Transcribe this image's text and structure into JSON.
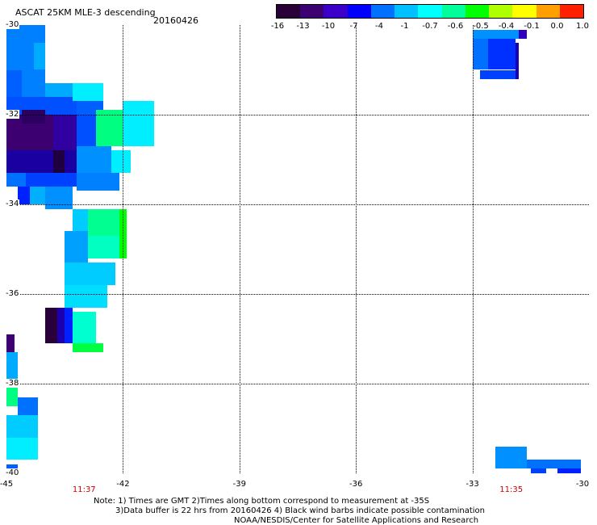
{
  "header": {
    "title": "ASCAT 25KM MLE-3 descending",
    "date": "20160426"
  },
  "colorbar": {
    "labels": [
      "-16",
      "-13",
      "-10",
      "-7",
      "-4",
      "-1",
      "-0.7",
      "-0.6",
      "-0.5",
      "-0.4",
      "-0.1",
      "0.0",
      "1.0"
    ],
    "colors": [
      "#2a0038",
      "#3c0070",
      "#3a00c8",
      "#0000ff",
      "#0070ff",
      "#00c0ff",
      "#00ffff",
      "#00ff9a",
      "#00ff00",
      "#b0ff00",
      "#ffff00",
      "#ffa000",
      "#ff2000"
    ]
  },
  "map": {
    "lat_labels": [
      "-30",
      "-32",
      "-34",
      "-36",
      "-38",
      "-40"
    ],
    "lon_labels": [
      "-45",
      "-42",
      "-39",
      "-36",
      "-33",
      "-30"
    ],
    "lon_range": [
      -45,
      -30
    ],
    "lat_range": [
      -30,
      -40
    ],
    "time_labels": [
      {
        "lon": -43,
        "text": "11:37"
      },
      {
        "lon": -32,
        "text": "11:35"
      }
    ],
    "cells": [
      {
        "lon1": -45,
        "lon2": -44,
        "lat1": -30.0,
        "lat2": -31.6,
        "v": "#0080ff"
      },
      {
        "lon1": -44.3,
        "lon2": -44,
        "lat1": -30.4,
        "lat2": -31.0,
        "v": "#00aaff"
      },
      {
        "lon1": -45,
        "lon2": -44.6,
        "lat1": -31.0,
        "lat2": -31.6,
        "v": "#0060ff"
      },
      {
        "lon1": -45,
        "lon2": -43.2,
        "lat1": -31.6,
        "lat2": -32.0,
        "v": "#0050ff"
      },
      {
        "lon1": -44.0,
        "lon2": -43.0,
        "lat1": -31.3,
        "lat2": -31.6,
        "v": "#00aaff"
      },
      {
        "lon1": -43.3,
        "lon2": -42.5,
        "lat1": -31.3,
        "lat2": -31.7,
        "v": "#00eeff"
      },
      {
        "lon1": -43.2,
        "lon2": -42.5,
        "lat1": -31.7,
        "lat2": -32.0,
        "v": "#0060ff"
      },
      {
        "lon1": -45,
        "lon2": -43.8,
        "lat1": -32.0,
        "lat2": -32.8,
        "v": "#3c0070"
      },
      {
        "lon1": -44.6,
        "lon2": -44.0,
        "lat1": -31.9,
        "lat2": -32.2,
        "v": "#2a0060"
      },
      {
        "lon1": -43.8,
        "lon2": -43.2,
        "lat1": -32.0,
        "lat2": -32.8,
        "v": "#3000a0"
      },
      {
        "lon1": -43.2,
        "lon2": -42.7,
        "lat1": -32.0,
        "lat2": -32.7,
        "v": "#0050ff"
      },
      {
        "lon1": -42.7,
        "lon2": -42.0,
        "lat1": -31.9,
        "lat2": -32.7,
        "v": "#00ff80"
      },
      {
        "lon1": -42.0,
        "lon2": -41.2,
        "lat1": -31.7,
        "lat2": -32.7,
        "v": "#00eeff"
      },
      {
        "lon1": -45,
        "lon2": -43.2,
        "lat1": -32.8,
        "lat2": -33.3,
        "v": "#1a00a0"
      },
      {
        "lon1": -43.8,
        "lon2": -43.5,
        "lat1": -32.8,
        "lat2": -33.3,
        "v": "#1e0040"
      },
      {
        "lon1": -43.2,
        "lon2": -42.3,
        "lat1": -32.7,
        "lat2": -33.3,
        "v": "#0090ff"
      },
      {
        "lon1": -42.3,
        "lon2": -41.8,
        "lat1": -32.8,
        "lat2": -33.3,
        "v": "#00eeff"
      },
      {
        "lon1": -45,
        "lon2": -44.5,
        "lat1": -33.3,
        "lat2": -33.6,
        "v": "#0070ff"
      },
      {
        "lon1": -44.5,
        "lon2": -43.2,
        "lat1": -33.3,
        "lat2": -33.6,
        "v": "#0040ff"
      },
      {
        "lon1": -43.2,
        "lon2": -42.1,
        "lat1": -33.3,
        "lat2": -33.7,
        "v": "#0080ff"
      },
      {
        "lon1": -44.5,
        "lon2": -44.0,
        "lat1": -33.6,
        "lat2": -34.0,
        "v": "#00b0ff"
      },
      {
        "lon1": -44.0,
        "lon2": -43.3,
        "lat1": -33.6,
        "lat2": -34.1,
        "v": "#0090ff"
      },
      {
        "lon1": -44.7,
        "lon2": -44.4,
        "lat1": -33.6,
        "lat2": -34.0,
        "v": "#0020ff"
      },
      {
        "lon1": -43.3,
        "lon2": -42.7,
        "lat1": -34.1,
        "lat2": -34.6,
        "v": "#00ccff"
      },
      {
        "lon1": -42.9,
        "lon2": -42.1,
        "lat1": -34.1,
        "lat2": -34.7,
        "v": "#00ff90"
      },
      {
        "lon1": -42.1,
        "lon2": -41.9,
        "lat1": -34.1,
        "lat2": -35.2,
        "v": "#00ff00"
      },
      {
        "lon1": -42.9,
        "lon2": -42.1,
        "lat1": -34.7,
        "lat2": -35.2,
        "v": "#00ffc0"
      },
      {
        "lon1": -43.5,
        "lon2": -42.9,
        "lat1": -34.6,
        "lat2": -35.3,
        "v": "#00a0ff"
      },
      {
        "lon1": -43.5,
        "lon2": -42.2,
        "lat1": -35.3,
        "lat2": -35.8,
        "v": "#00ccff"
      },
      {
        "lon1": -43.5,
        "lon2": -42.4,
        "lat1": -35.8,
        "lat2": -36.3,
        "v": "#00ddff"
      },
      {
        "lon1": -44.0,
        "lon2": -43.7,
        "lat1": -36.3,
        "lat2": -37.1,
        "v": "#2a0038"
      },
      {
        "lon1": -43.7,
        "lon2": -43.5,
        "lat1": -36.3,
        "lat2": -37.1,
        "v": "#1a00b0"
      },
      {
        "lon1": -43.5,
        "lon2": -43.3,
        "lat1": -36.3,
        "lat2": -37.1,
        "v": "#0020ff"
      },
      {
        "lon1": -43.3,
        "lon2": -42.7,
        "lat1": -36.4,
        "lat2": -37.1,
        "v": "#00ffd0"
      },
      {
        "lon1": -43.3,
        "lon2": -42.5,
        "lat1": -37.1,
        "lat2": -37.3,
        "v": "#00ff40"
      },
      {
        "lon1": -45,
        "lon2": -44.8,
        "lat1": -36.9,
        "lat2": -37.6,
        "v": "#3c0070"
      },
      {
        "lon1": -45,
        "lon2": -44.7,
        "lat1": -37.3,
        "lat2": -38.0,
        "v": "#00aaff"
      },
      {
        "lon1": -45,
        "lon2": -44.7,
        "lat1": -38.0,
        "lat2": -38.5,
        "v": "#00ff80"
      },
      {
        "lon1": -44.7,
        "lon2": -44.2,
        "lat1": -38.3,
        "lat2": -38.7,
        "v": "#0070ff"
      },
      {
        "lon1": -45,
        "lon2": -44.2,
        "lat1": -38.7,
        "lat2": -39.2,
        "v": "#00ccff"
      },
      {
        "lon1": -45,
        "lon2": -44.2,
        "lat1": -39.2,
        "lat2": -39.7,
        "v": "#00eeff"
      },
      {
        "lon1": -45,
        "lon2": -44.7,
        "lat1": -39.8,
        "lat2": -40.0,
        "v": "#0060ff"
      },
      {
        "lon1": -33.0,
        "lon2": -31.8,
        "lat1": -30.1,
        "lat2": -30.3,
        "v": "#0090ff"
      },
      {
        "lon1": -31.8,
        "lon2": -31.6,
        "lat1": -30.1,
        "lat2": -30.3,
        "v": "#3000c0"
      },
      {
        "lon1": -33.0,
        "lon2": -32.6,
        "lat1": -30.3,
        "lat2": -31.0,
        "v": "#0070ff"
      },
      {
        "lon1": -32.6,
        "lon2": -31.9,
        "lat1": -30.3,
        "lat2": -31.0,
        "v": "#0030ff"
      },
      {
        "lon1": -32.8,
        "lon2": -31.9,
        "lat1": -31.0,
        "lat2": -31.2,
        "v": "#0040ff"
      },
      {
        "lon1": -31.9,
        "lon2": -31.8,
        "lat1": -30.4,
        "lat2": -31.2,
        "v": "#1a00b0"
      },
      {
        "lon1": -32.4,
        "lon2": -31.6,
        "lat1": -39.4,
        "lat2": -39.9,
        "v": "#0090ff"
      },
      {
        "lon1": -31.6,
        "lon2": -30.2,
        "lat1": -39.7,
        "lat2": -39.9,
        "v": "#0070ff"
      },
      {
        "lon1": -31.5,
        "lon2": -31.1,
        "lat1": -39.9,
        "lat2": -40.0,
        "v": "#0040ff"
      },
      {
        "lon1": -30.8,
        "lon2": -30.2,
        "lat1": -39.9,
        "lat2": -40.0,
        "v": "#0020ff"
      }
    ]
  },
  "notes": [
    "Note: 1) Times are GMT 2)Times along bottom correspond to measurement at -35S",
    "3)Data buffer is 22 hrs from 20160426 4) Black wind barbs indicate possible contamination",
    "NOAA/NESDIS/Center for Satellite Applications and Research"
  ]
}
